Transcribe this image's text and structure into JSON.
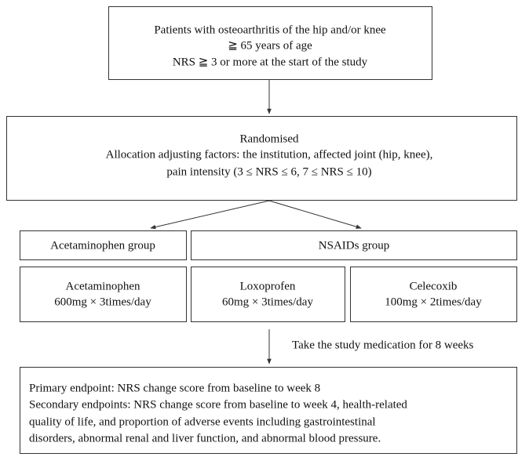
{
  "eligibility": [
    "Patients with osteoarthritis of the hip and/or knee",
    "≧ 65 years of age",
    "NRS ≧ 3 or more at the start of the study"
  ],
  "randomisation": [
    "Randomised",
    "Allocation adjusting factors: the institution, affected joint (hip, knee),",
    "pain intensity (3 ≤ NRS ≤ 6, 7 ≤ NRS ≤ 10)"
  ],
  "groups": [
    "Acetaminophen group",
    "NSAIDs group"
  ],
  "treatments": [
    {
      "drug": "Acetaminophen",
      "dose": "600mg × 3times/day"
    },
    {
      "drug": "Loxoprofen",
      "dose": "60mg × 3times/day"
    },
    {
      "drug": "Celecoxib",
      "dose": "100mg × 2times/day"
    }
  ],
  "duration": "Take the study medication for 8 weeks",
  "endpoints": [
    "Primary endpoint: NRS change score from baseline to week 8",
    "Secondary endpoints: NRS change score from baseline to week 4, health-related",
    "quality of life, and proportion of adverse events including gastrointestinal",
    "disorders, abnormal renal and liver function, and abnormal blood pressure."
  ]
}
